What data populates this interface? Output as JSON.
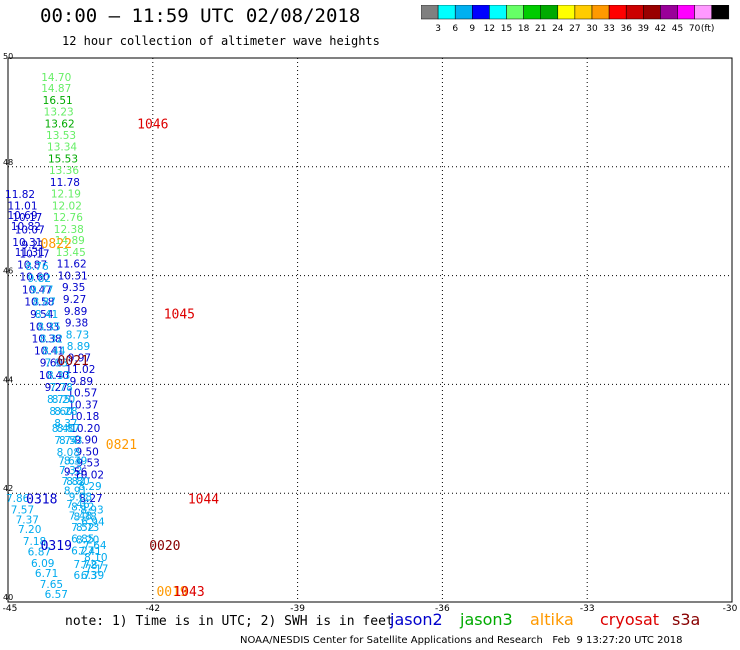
{
  "header": {
    "title": "00:00 – 11:59 UTC 02/08/2018",
    "subtitle": "12 hour collection of altimeter wave heights"
  },
  "legend": {
    "colors": [
      "#808080",
      "#00ffff",
      "#00b0f0",
      "#0000ff",
      "#00ffff",
      "#66ff66",
      "#00cc00",
      "#00aa00",
      "#ffff00",
      "#ffcc00",
      "#ff9900",
      "#ff0000",
      "#cc0000",
      "#990000",
      "#990099",
      "#ff00ff",
      "#ff99ff",
      "#000000"
    ],
    "labels": [
      "3",
      "6",
      "9",
      "12",
      "15",
      "18",
      "21",
      "24",
      "27",
      "30",
      "33",
      "36",
      "39",
      "42",
      "45",
      "70"
    ],
    "unit": "(ft)"
  },
  "map": {
    "x_ticks": [
      "-45",
      "-42",
      "-39",
      "-36",
      "-33",
      "-30"
    ],
    "y_ticks": [
      "50",
      "48",
      "46",
      "44",
      "42",
      "40"
    ],
    "lon_range": [
      -45,
      -30
    ],
    "lat_range": [
      40,
      50
    ]
  },
  "observations": [
    {
      "t": "14.70",
      "lon": -44.0,
      "lat": 49.65,
      "c": "#66ee66"
    },
    {
      "t": "14.87",
      "lon": -44.0,
      "lat": 49.45,
      "c": "#66ee66"
    },
    {
      "t": "16.51",
      "lon": -43.97,
      "lat": 49.23,
      "c": "#00aa00"
    },
    {
      "t": "13.23",
      "lon": -43.95,
      "lat": 49.02,
      "c": "#66ee66"
    },
    {
      "t": "13.62",
      "lon": -43.93,
      "lat": 48.8,
      "c": "#00aa00"
    },
    {
      "t": "13.53",
      "lon": -43.9,
      "lat": 48.58,
      "c": "#66ee66"
    },
    {
      "t": "13.34",
      "lon": -43.88,
      "lat": 48.37,
      "c": "#66ee66"
    },
    {
      "t": "15.53",
      "lon": -43.86,
      "lat": 48.15,
      "c": "#00aa00"
    },
    {
      "t": "13.36",
      "lon": -43.84,
      "lat": 47.94,
      "c": "#66ee66"
    },
    {
      "t": "11.78",
      "lon": -43.82,
      "lat": 47.72,
      "c": "#0000cc"
    },
    {
      "t": "12.19",
      "lon": -43.8,
      "lat": 47.51,
      "c": "#66ee66"
    },
    {
      "t": "12.02",
      "lon": -43.78,
      "lat": 47.29,
      "c": "#66ee66"
    },
    {
      "t": "12.76",
      "lon": -43.76,
      "lat": 47.08,
      "c": "#66ee66"
    },
    {
      "t": "12.38",
      "lon": -43.74,
      "lat": 46.86,
      "c": "#66ee66"
    },
    {
      "t": "14.89",
      "lon": -43.72,
      "lat": 46.65,
      "c": "#66ee66"
    },
    {
      "t": "13.45",
      "lon": -43.7,
      "lat": 46.43,
      "c": "#66ee66"
    },
    {
      "t": "11.62",
      "lon": -43.68,
      "lat": 46.22,
      "c": "#0000cc"
    },
    {
      "t": "10.31",
      "lon": -43.66,
      "lat": 46.0,
      "c": "#0000cc"
    },
    {
      "t": "9.35",
      "lon": -43.64,
      "lat": 45.79,
      "c": "#0000cc"
    },
    {
      "t": "9.27",
      "lon": -43.62,
      "lat": 45.57,
      "c": "#0000cc"
    },
    {
      "t": "9.89",
      "lon": -43.6,
      "lat": 45.35,
      "c": "#0000cc"
    },
    {
      "t": "9.38",
      "lon": -43.58,
      "lat": 45.14,
      "c": "#0000cc"
    },
    {
      "t": "8.73",
      "lon": -43.56,
      "lat": 44.92,
      "c": "#00aaee"
    },
    {
      "t": "8.89",
      "lon": -43.54,
      "lat": 44.71,
      "c": "#00aaee"
    },
    {
      "t": "9.97",
      "lon": -43.52,
      "lat": 44.49,
      "c": "#0000cc"
    },
    {
      "t": "11.02",
      "lon": -43.5,
      "lat": 44.28,
      "c": "#0000cc"
    },
    {
      "t": "9.89",
      "lon": -43.48,
      "lat": 44.06,
      "c": "#0000cc"
    },
    {
      "t": "10.57",
      "lon": -43.46,
      "lat": 43.85,
      "c": "#0000cc"
    },
    {
      "t": "10.37",
      "lon": -43.44,
      "lat": 43.63,
      "c": "#0000cc"
    },
    {
      "t": "10.18",
      "lon": -43.42,
      "lat": 43.42,
      "c": "#0000cc"
    },
    {
      "t": "10.20",
      "lon": -43.4,
      "lat": 43.2,
      "c": "#0000cc"
    },
    {
      "t": "9.90",
      "lon": -43.38,
      "lat": 42.99,
      "c": "#0000cc"
    },
    {
      "t": "9.50",
      "lon": -43.36,
      "lat": 42.77,
      "c": "#0000cc"
    },
    {
      "t": "9.53",
      "lon": -43.34,
      "lat": 42.56,
      "c": "#0000cc"
    },
    {
      "t": "10.02",
      "lon": -43.32,
      "lat": 42.34,
      "c": "#0000cc"
    },
    {
      "t": "8.29",
      "lon": -43.3,
      "lat": 42.13,
      "c": "#00aaee"
    },
    {
      "t": "8.27",
      "lon": -43.28,
      "lat": 41.91,
      "c": "#0000cc"
    },
    {
      "t": "8.93",
      "lon": -43.26,
      "lat": 41.7,
      "c": "#00aaee"
    },
    {
      "t": "6.94",
      "lon": -43.24,
      "lat": 41.48,
      "c": "#00aaee"
    },
    {
      "t": "7.64",
      "lon": -43.2,
      "lat": 41.05,
      "c": "#00aaee"
    },
    {
      "t": "8.10",
      "lon": -43.18,
      "lat": 40.83,
      "c": "#00aaee"
    },
    {
      "t": "7.17",
      "lon": -43.16,
      "lat": 40.62,
      "c": "#00aaee"
    },
    {
      "t": "11.82",
      "lon": -44.75,
      "lat": 47.5,
      "c": "#0000cc"
    },
    {
      "t": "11.01",
      "lon": -44.7,
      "lat": 47.29,
      "c": "#0000cc"
    },
    {
      "t": "10.69",
      "lon": -44.7,
      "lat": 47.11,
      "c": "#0000cc"
    },
    {
      "t": "10.17",
      "lon": -44.6,
      "lat": 47.08,
      "c": "#0000cc"
    },
    {
      "t": "10.82",
      "lon": -44.63,
      "lat": 46.91,
      "c": "#0000cc"
    },
    {
      "t": "10.07",
      "lon": -44.55,
      "lat": 46.85,
      "c": "#0000cc"
    },
    {
      "t": "10.31",
      "lon": -44.6,
      "lat": 46.62,
      "c": "#0000cc"
    },
    {
      "t": "9.21",
      "lon": -44.48,
      "lat": 46.57,
      "c": "#0000cc"
    },
    {
      "t": "11.31",
      "lon": -44.55,
      "lat": 46.43,
      "c": "#0000cc"
    },
    {
      "t": "10.17",
      "lon": -44.45,
      "lat": 46.41,
      "c": "#0000cc"
    },
    {
      "t": "10.87",
      "lon": -44.5,
      "lat": 46.2,
      "c": "#0000cc"
    },
    {
      "t": "8.76",
      "lon": -44.4,
      "lat": 46.18,
      "c": "#00aaee"
    },
    {
      "t": "10.60",
      "lon": -44.45,
      "lat": 45.98,
      "c": "#0000cc"
    },
    {
      "t": "9.82",
      "lon": -44.35,
      "lat": 45.96,
      "c": "#00aaee"
    },
    {
      "t": "10.47",
      "lon": -44.4,
      "lat": 45.74,
      "c": "#0000cc"
    },
    {
      "t": "9.77",
      "lon": -44.3,
      "lat": 45.74,
      "c": "#00aaee"
    },
    {
      "t": "10.58",
      "lon": -44.35,
      "lat": 45.52,
      "c": "#0000cc"
    },
    {
      "t": "8.87",
      "lon": -44.25,
      "lat": 45.52,
      "c": "#00aaee"
    },
    {
      "t": "9.54",
      "lon": -44.3,
      "lat": 45.29,
      "c": "#0000cc"
    },
    {
      "t": "8.41",
      "lon": -44.2,
      "lat": 45.29,
      "c": "#00aaee"
    },
    {
      "t": "10.93",
      "lon": -44.25,
      "lat": 45.06,
      "c": "#0000cc"
    },
    {
      "t": "8.35",
      "lon": -44.15,
      "lat": 45.06,
      "c": "#00aaee"
    },
    {
      "t": "10.38",
      "lon": -44.2,
      "lat": 44.84,
      "c": "#0000cc"
    },
    {
      "t": "8.32",
      "lon": -44.1,
      "lat": 44.84,
      "c": "#00aaee"
    },
    {
      "t": "10.41",
      "lon": -44.15,
      "lat": 44.62,
      "c": "#0000cc"
    },
    {
      "t": "8.44",
      "lon": -44.05,
      "lat": 44.62,
      "c": "#00aaee"
    },
    {
      "t": "9.60",
      "lon": -44.1,
      "lat": 44.4,
      "c": "#0000cc"
    },
    {
      "t": "7.93",
      "lon": -44.0,
      "lat": 44.4,
      "c": "#00aaee"
    },
    {
      "t": "10.40",
      "lon": -44.05,
      "lat": 44.17,
      "c": "#0000cc"
    },
    {
      "t": "8.33",
      "lon": -43.95,
      "lat": 44.17,
      "c": "#00aaee"
    },
    {
      "t": "9.27",
      "lon": -44.0,
      "lat": 43.95,
      "c": "#0000cc"
    },
    {
      "t": "7.78",
      "lon": -43.9,
      "lat": 43.95,
      "c": "#00aaee"
    },
    {
      "t": "8.75",
      "lon": -43.95,
      "lat": 43.73,
      "c": "#00aaee"
    },
    {
      "t": "8.20",
      "lon": -43.85,
      "lat": 43.73,
      "c": "#00aaee"
    },
    {
      "t": "8.60",
      "lon": -43.9,
      "lat": 43.51,
      "c": "#00aaee"
    },
    {
      "t": "8.28",
      "lon": -43.8,
      "lat": 43.51,
      "c": "#00aaee"
    },
    {
      "t": "8.37",
      "lon": -43.8,
      "lat": 43.29,
      "c": "#00aaee"
    },
    {
      "t": "8.40",
      "lon": -43.85,
      "lat": 43.2,
      "c": "#00aaee"
    },
    {
      "t": "8.87",
      "lon": -43.75,
      "lat": 43.2,
      "c": "#00aaee"
    },
    {
      "t": "7.74",
      "lon": -43.8,
      "lat": 42.98,
      "c": "#00aaee"
    },
    {
      "t": "8.53",
      "lon": -43.7,
      "lat": 42.98,
      "c": "#00aaee"
    },
    {
      "t": "8.08",
      "lon": -43.75,
      "lat": 42.76,
      "c": "#00aaee"
    },
    {
      "t": "7.64",
      "lon": -43.72,
      "lat": 42.6,
      "c": "#00aaee"
    },
    {
      "t": "8.39",
      "lon": -43.6,
      "lat": 42.6,
      "c": "#00aaee"
    },
    {
      "t": "7.32",
      "lon": -43.7,
      "lat": 42.43,
      "c": "#00aaee"
    },
    {
      "t": "9.56",
      "lon": -43.6,
      "lat": 42.4,
      "c": "#0000cc"
    },
    {
      "t": "7.82",
      "lon": -43.65,
      "lat": 42.22,
      "c": "#00aaee"
    },
    {
      "t": "8.80",
      "lon": -43.55,
      "lat": 42.22,
      "c": "#00aaee"
    },
    {
      "t": "8.91",
      "lon": -43.6,
      "lat": 42.05,
      "c": "#00aaee"
    },
    {
      "t": "9.08",
      "lon": -43.5,
      "lat": 41.94,
      "c": "#00aaee"
    },
    {
      "t": "7.46",
      "lon": -43.55,
      "lat": 41.8,
      "c": "#00aaee"
    },
    {
      "t": "8.12",
      "lon": -43.45,
      "lat": 41.76,
      "c": "#00aaee"
    },
    {
      "t": "7.48",
      "lon": -43.5,
      "lat": 41.59,
      "c": "#00aaee"
    },
    {
      "t": "8.38",
      "lon": -43.4,
      "lat": 41.57,
      "c": "#00aaee"
    },
    {
      "t": "7.52",
      "lon": -43.45,
      "lat": 41.38,
      "c": "#00aaee"
    },
    {
      "t": "8.73",
      "lon": -43.35,
      "lat": 41.38,
      "c": "#00aaee"
    },
    {
      "t": "6.85",
      "lon": -43.45,
      "lat": 41.17,
      "c": "#00aaee"
    },
    {
      "t": "8.20",
      "lon": -43.35,
      "lat": 41.15,
      "c": "#00aaee"
    },
    {
      "t": "6.27",
      "lon": -43.45,
      "lat": 40.95,
      "c": "#00aaee"
    },
    {
      "t": "7.41",
      "lon": -43.3,
      "lat": 40.94,
      "c": "#00aaee"
    },
    {
      "t": "7.72",
      "lon": -43.4,
      "lat": 40.7,
      "c": "#00aaee"
    },
    {
      "t": "7.87",
      "lon": -43.25,
      "lat": 40.68,
      "c": "#00aaee"
    },
    {
      "t": "6.73",
      "lon": -43.4,
      "lat": 40.5,
      "c": "#00aaee"
    },
    {
      "t": "6.39",
      "lon": -43.25,
      "lat": 40.5,
      "c": "#00aaee"
    },
    {
      "t": "7.86",
      "lon": -44.8,
      "lat": 41.91,
      "c": "#00aaee"
    },
    {
      "t": "7.57",
      "lon": -44.7,
      "lat": 41.7,
      "c": "#00aaee"
    },
    {
      "t": "7.37",
      "lon": -44.6,
      "lat": 41.52,
      "c": "#00aaee"
    },
    {
      "t": "7.20",
      "lon": -44.55,
      "lat": 41.34,
      "c": "#00aaee"
    },
    {
      "t": "7.18",
      "lon": -44.45,
      "lat": 41.12,
      "c": "#00aaee"
    },
    {
      "t": "6.87",
      "lon": -44.35,
      "lat": 40.93,
      "c": "#00aaee"
    },
    {
      "t": "6.09",
      "lon": -44.28,
      "lat": 40.72,
      "c": "#00aaee"
    },
    {
      "t": "6.71",
      "lon": -44.2,
      "lat": 40.53,
      "c": "#00aaee"
    },
    {
      "t": "7.65",
      "lon": -44.1,
      "lat": 40.33,
      "c": "#00aaee"
    },
    {
      "t": "6.57",
      "lon": -44.0,
      "lat": 40.15,
      "c": "#00aaee"
    }
  ],
  "passes": [
    {
      "t": "1046",
      "lon": -42.0,
      "lat": 48.8,
      "c": "#dd0000"
    },
    {
      "t": "0822",
      "lon": -44.0,
      "lat": 46.6,
      "c": "#ff9900"
    },
    {
      "t": "1045",
      "lon": -41.45,
      "lat": 45.3,
      "c": "#dd0000"
    },
    {
      "t": "0021",
      "lon": -43.65,
      "lat": 44.45,
      "c": "#880000"
    },
    {
      "t": "0821",
      "lon": -42.65,
      "lat": 42.9,
      "c": "#ff9900"
    },
    {
      "t": "0318",
      "lon": -44.3,
      "lat": 41.9,
      "c": "#0000cc"
    },
    {
      "t": "1044",
      "lon": -40.95,
      "lat": 41.9,
      "c": "#dd0000"
    },
    {
      "t": "0319",
      "lon": -44.0,
      "lat": 41.05,
      "c": "#0000cc"
    },
    {
      "t": "0020",
      "lon": -41.75,
      "lat": 41.05,
      "c": "#880000"
    },
    {
      "t": "0019",
      "lon": -41.6,
      "lat": 40.2,
      "c": "#ff9900"
    },
    {
      "t": "1043",
      "lon": -41.25,
      "lat": 40.2,
      "c": "#dd0000"
    }
  ],
  "footer": {
    "note": "note: 1) Time is in UTC; 2) SWH is in feet",
    "satellites": [
      {
        "name": "jason2",
        "c": "#0000cc"
      },
      {
        "name": "jason3",
        "c": "#00aa00"
      },
      {
        "name": "altika",
        "c": "#ff9900"
      },
      {
        "name": "cryosat",
        "c": "#dd0000"
      },
      {
        "name": "s3a",
        "c": "#880000"
      }
    ],
    "credit": "NOAA/NESDIS Center for Satellite Applications and Research   Feb  9 13:27:20 UTC 2018"
  }
}
